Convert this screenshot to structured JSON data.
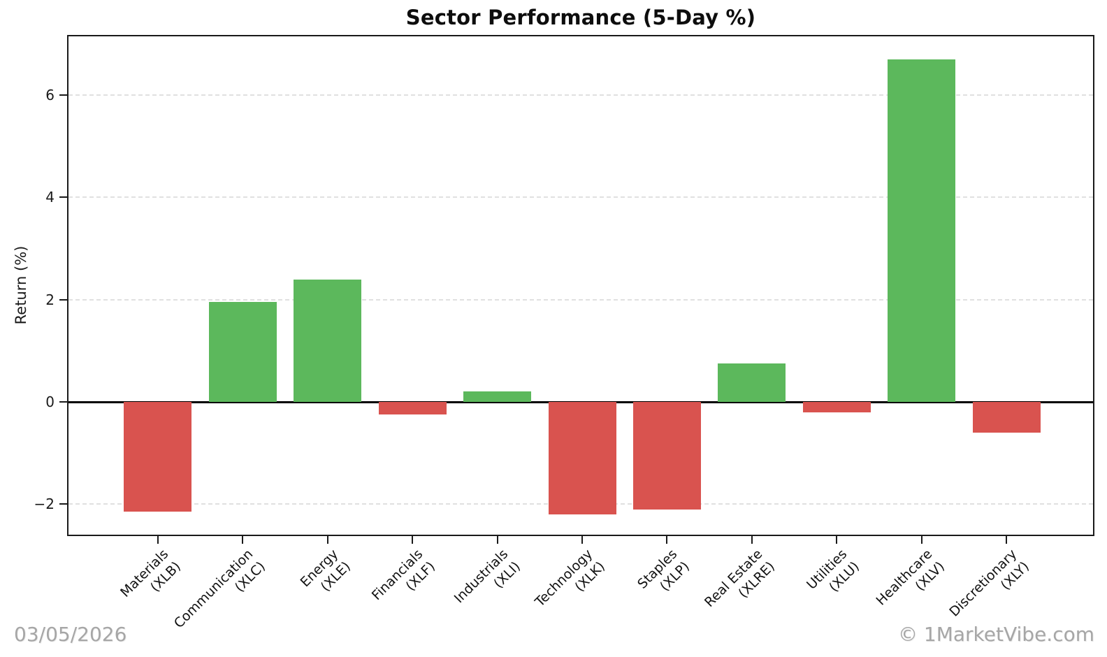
{
  "title": "Sector Performance (5-Day %)",
  "footer": {
    "date": "03/05/2026",
    "credit": "© 1MarketVibe.com"
  },
  "colors": {
    "positive": "#5cb85c",
    "negative": "#d9534f",
    "grid": "#e0e0e0",
    "axis": "#1a1a1a",
    "zero_line": "#000000",
    "footer_text": "#a6a6a6"
  },
  "chart_data": {
    "type": "bar",
    "title": "Sector Performance (5-Day %)",
    "xlabel": "",
    "ylabel": "Return (%)",
    "categories": [
      "Materials (XLB)",
      "Communication (XLC)",
      "Energy (XLE)",
      "Financials (XLF)",
      "Industrials (XLI)",
      "Technology (XLK)",
      "Staples (XLP)",
      "Real Estate (XLRE)",
      "Utilities (XLU)",
      "Healthcare (XLV)",
      "Discretionary (XLY)"
    ],
    "tick_labels": [
      [
        "Materials",
        "(XLB)"
      ],
      [
        "Communication",
        "(XLC)"
      ],
      [
        "Energy",
        "(XLE)"
      ],
      [
        "Financials",
        "(XLF)"
      ],
      [
        "Industrials",
        "(XLI)"
      ],
      [
        "Technology",
        "(XLK)"
      ],
      [
        "Staples",
        "(XLP)"
      ],
      [
        "Real Estate",
        "(XLRE)"
      ],
      [
        "Utilities",
        "(XLU)"
      ],
      [
        "Healthcare",
        "(XLV)"
      ],
      [
        "Discretionary",
        "(XLY)"
      ]
    ],
    "values": [
      -2.15,
      1.95,
      2.4,
      -0.25,
      0.2,
      -2.2,
      -2.1,
      0.75,
      -0.2,
      6.7,
      -0.6
    ],
    "color_rule": "green if value >= 0 else red",
    "yticks": [
      -2,
      0,
      2,
      4,
      6
    ],
    "ylim": [
      -2.65,
      7.15
    ],
    "grid": {
      "dashed_at": [
        -2,
        2,
        4,
        6
      ],
      "zero_line": "solid black horizontal line at 0"
    },
    "legend": "none"
  }
}
